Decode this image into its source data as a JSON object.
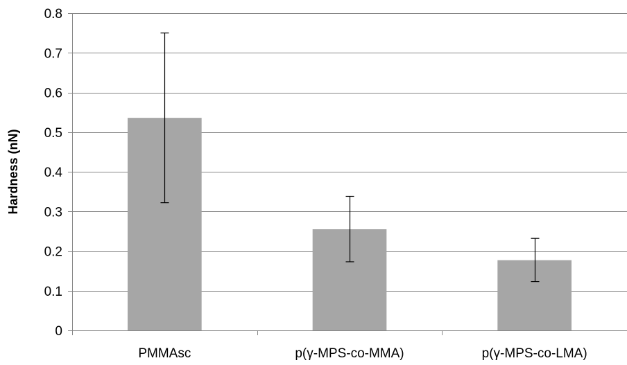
{
  "chart_data": {
    "type": "bar",
    "title": "",
    "xlabel": "",
    "ylabel": "Hardness (nN)",
    "categories": [
      "PMMAsc",
      "p(γ-MPS-co-MMA)",
      "p(γ-MPS-co-LMA)"
    ],
    "values": [
      0.536,
      0.255,
      0.177
    ],
    "error_low": [
      0.322,
      0.173,
      0.123
    ],
    "error_high": [
      0.75,
      0.338,
      0.232
    ],
    "yticks": [
      0,
      0.1,
      0.2,
      0.3,
      0.4,
      0.5,
      0.6,
      0.7,
      0.8
    ],
    "ytick_labels": [
      "0",
      "0.1",
      "0.2",
      "0.3",
      "0.4",
      "0.5",
      "0.6",
      "0.7",
      "0.8"
    ],
    "ylim": [
      0,
      0.8
    ],
    "grid": true,
    "legend": "none",
    "colors": {
      "bar": "#a6a6a6",
      "grid": "#868686",
      "axis": "#868686",
      "error": "#000000"
    }
  }
}
